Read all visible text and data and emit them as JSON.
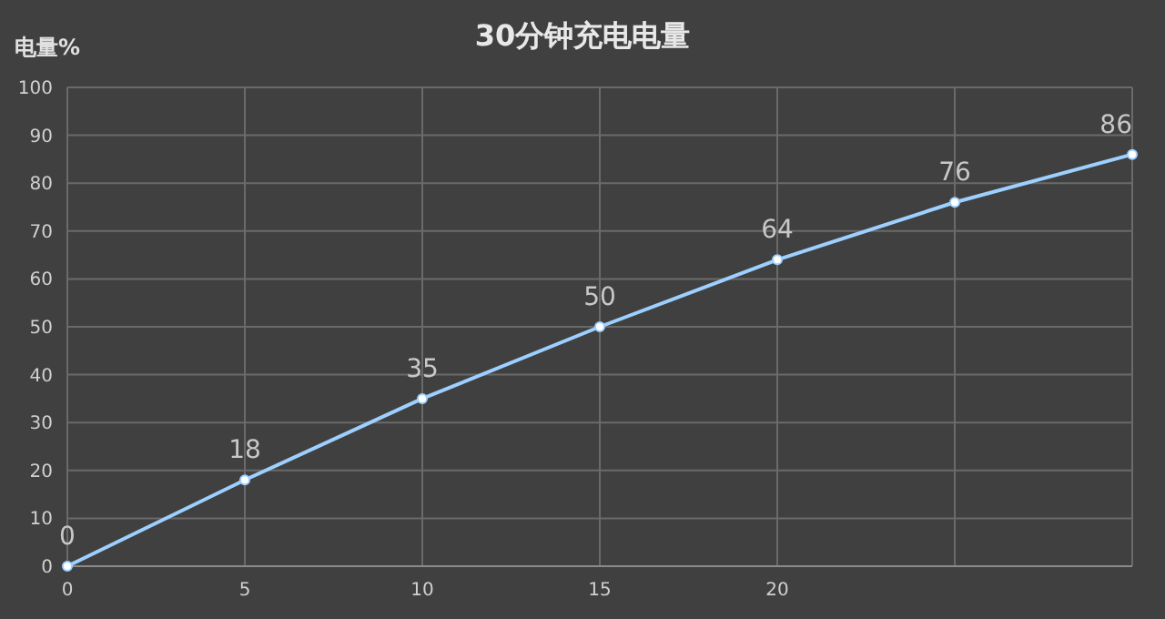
{
  "chart_data": {
    "type": "line",
    "title": "30分钟充电电量",
    "ylabel": "电量%",
    "x": [
      0,
      5,
      10,
      15,
      20,
      25,
      30
    ],
    "values": [
      0,
      18,
      35,
      50,
      64,
      76,
      86
    ],
    "color": "#9dd0ff",
    "xlim": [
      0,
      30
    ],
    "ylim": [
      0,
      100
    ],
    "xticks": [
      0,
      5,
      10,
      15,
      20,
      {
        "value": 25,
        "label": null
      },
      {
        "value": 30,
        "label": null
      }
    ],
    "yticks": [
      0,
      10,
      20,
      30,
      40,
      50,
      60,
      70,
      80,
      90,
      100
    ],
    "grid": true,
    "marker": "circle",
    "data_labels": true
  }
}
